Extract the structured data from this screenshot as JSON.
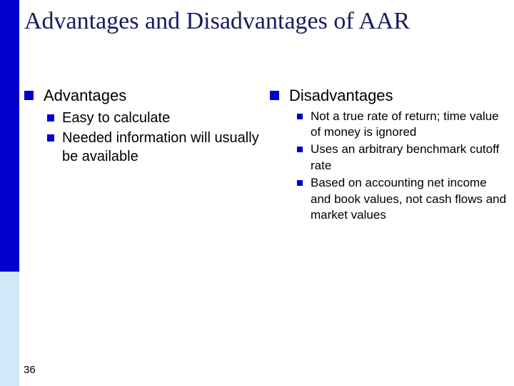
{
  "colors": {
    "accent": "#0000cc",
    "sidebar_light": "#d0e8f8",
    "title_color": "#1a1a60",
    "text_color": "#000000",
    "background": "#ffffff"
  },
  "slide": {
    "title": "Advantages and Disadvantages of AAR",
    "number": "36"
  },
  "left": {
    "heading": "Advantages",
    "items": [
      "Easy to calculate",
      "Needed information will usually be available"
    ]
  },
  "right": {
    "heading": "Disadvantages",
    "items": [
      "Not a true rate of return; time value of money is ignored",
      "Uses an arbitrary benchmark cutoff rate",
      "Based on accounting net income and book values, not cash flows and market values"
    ]
  }
}
